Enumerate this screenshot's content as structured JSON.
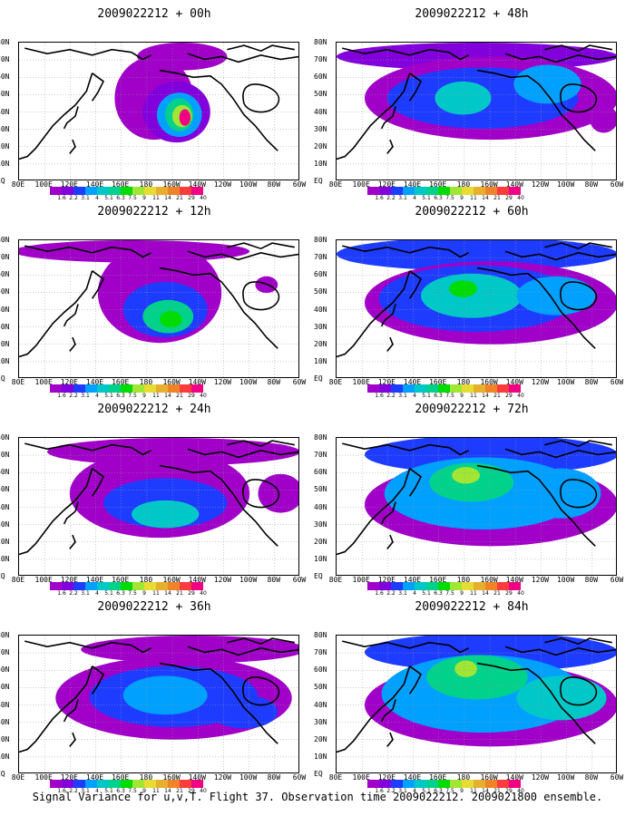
{
  "legend": {
    "colors": [
      "#a000c8",
      "#8200dc",
      "#1e3cff",
      "#00a0ff",
      "#00c8c8",
      "#00d28c",
      "#00dc00",
      "#a0e632",
      "#e6dc32",
      "#e6af2d",
      "#f08228",
      "#fa3c3c",
      "#f00082"
    ],
    "labels": [
      "1.6",
      "2.2",
      "3.1",
      "4",
      "5.1",
      "6.3",
      "7.5",
      "9",
      "11",
      "14",
      "21",
      "29",
      "40"
    ]
  },
  "axes": {
    "lat_labels": [
      "80N",
      "70N",
      "60N",
      "50N",
      "40N",
      "30N",
      "20N",
      "10N",
      "EQ"
    ],
    "lon_labels": [
      "80E",
      "100E",
      "120E",
      "140E",
      "160E",
      "180",
      "160W",
      "140W",
      "120W",
      "100W",
      "80W",
      "60W"
    ]
  },
  "panels": [
    {
      "id": "p00",
      "title": "2009022212 + 00h"
    },
    {
      "id": "p48",
      "title": "2009022212 + 48h"
    },
    {
      "id": "p12",
      "title": "2009022212 + 12h"
    },
    {
      "id": "p60",
      "title": "2009022212 + 60h"
    },
    {
      "id": "p24",
      "title": "2009022212 + 24h"
    },
    {
      "id": "p72",
      "title": "2009022212 + 72h"
    },
    {
      "id": "p36",
      "title": "2009022212 + 36h"
    },
    {
      "id": "p84",
      "title": "2009022212 + 84h"
    }
  ],
  "footer": "Signal Variance for u,v,T. Flight 37. Observation time 2009022212. 2009021800 ensemble."
}
